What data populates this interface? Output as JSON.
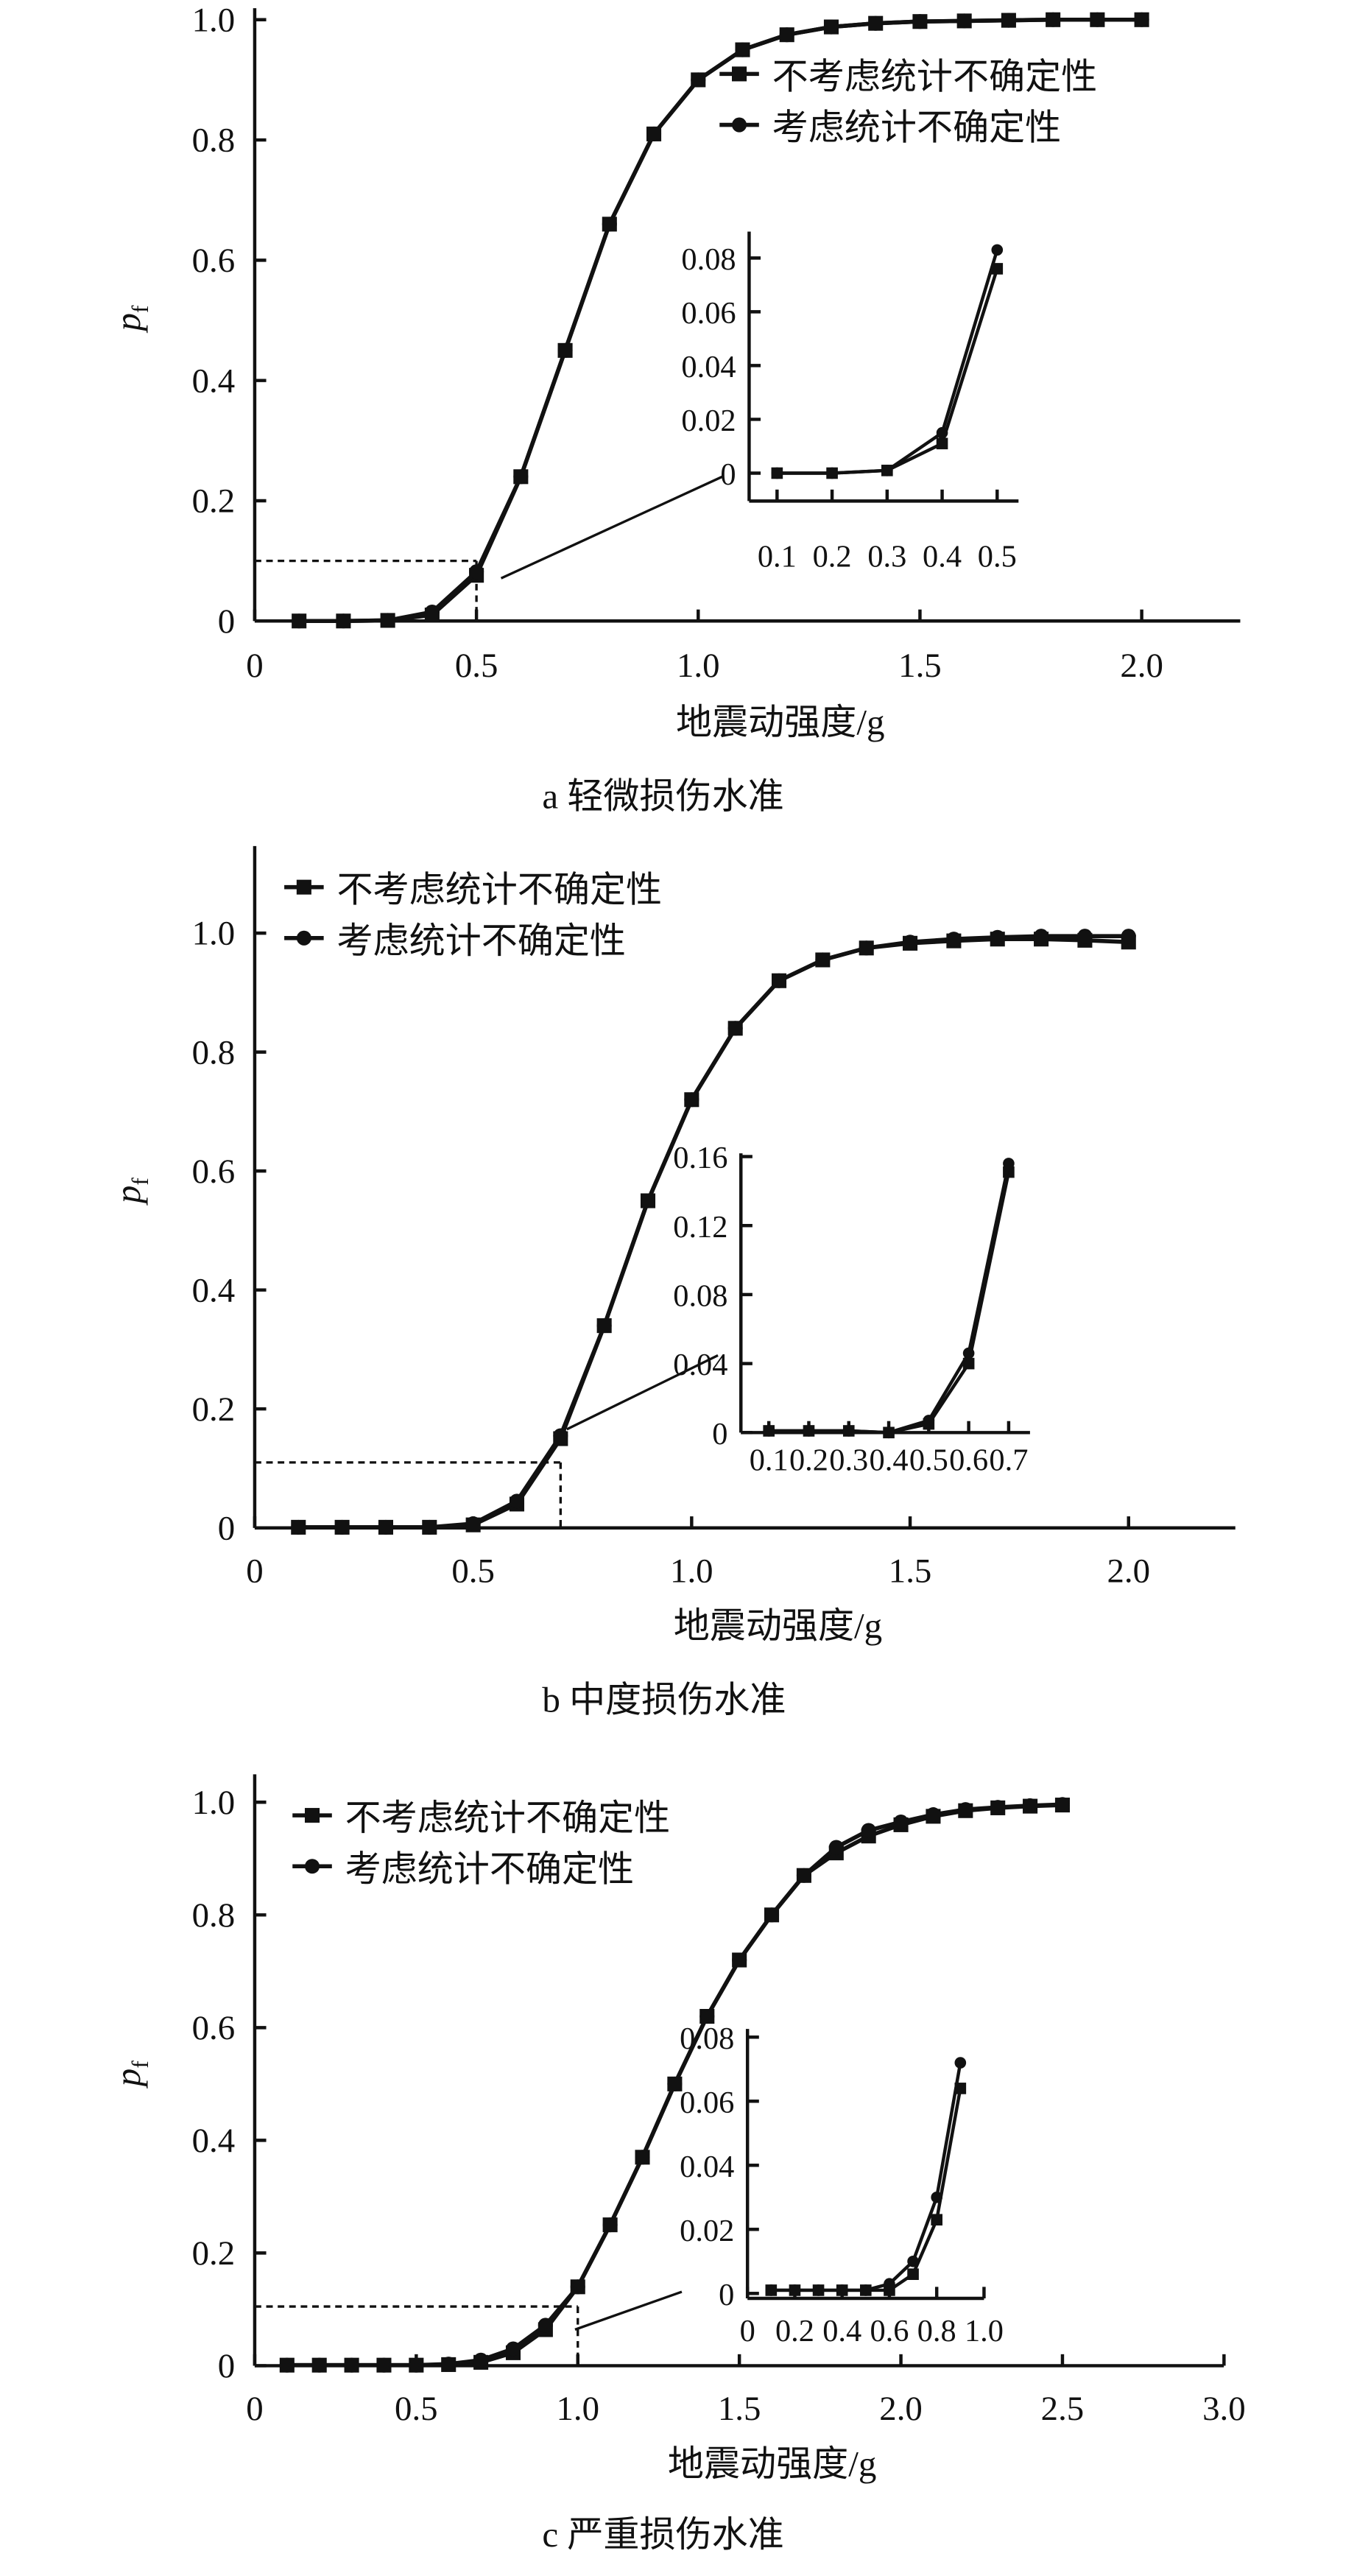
{
  "legend": [
    "不考虑统计不确定性",
    "考虑统计不确定性"
  ],
  "chart_data": [
    {
      "type": "line",
      "caption": "a  轻微损伤水准",
      "xlabel": "地震动强度/g",
      "ylabel": "p_f",
      "xlim": [
        0,
        2.2
      ],
      "ylim": [
        0,
        1.0
      ],
      "xticks": [
        "0",
        "0.5",
        "1.0",
        "1.5",
        "2.0"
      ],
      "xtick_values": [
        0,
        0.5,
        1.0,
        1.5,
        2.0
      ],
      "yticks": [
        "0",
        "0.2",
        "0.4",
        "0.6",
        "0.8",
        "1.0"
      ],
      "ytick_values": [
        0,
        0.2,
        0.4,
        0.6,
        0.8,
        1.0
      ],
      "legend_position": "top-right",
      "reference": {
        "y": 0.1,
        "x": 0.5
      },
      "x": [
        0.1,
        0.2,
        0.3,
        0.4,
        0.5,
        0.6,
        0.7,
        0.8,
        0.9,
        1.0,
        1.1,
        1.2,
        1.3,
        1.4,
        1.5,
        1.6,
        1.7,
        1.8,
        1.9,
        2.0
      ],
      "series": [
        {
          "name": "不考虑统计不确定性",
          "marker": "square",
          "values": [
            0,
            0,
            0.001,
            0.01,
            0.076,
            0.24,
            0.45,
            0.66,
            0.81,
            0.9,
            0.95,
            0.975,
            0.988,
            0.994,
            0.997,
            0.998,
            0.999,
            1.0,
            1.0,
            1.0
          ]
        },
        {
          "name": "考虑统计不确定性",
          "marker": "circle",
          "values": [
            0,
            0,
            0.001,
            0.015,
            0.082,
            0.24,
            0.45,
            0.66,
            0.81,
            0.9,
            0.95,
            0.975,
            0.988,
            0.994,
            0.997,
            0.998,
            0.999,
            1.0,
            1.0,
            1.0
          ]
        }
      ],
      "inset": {
        "xticks": [
          "0.1",
          "0.2",
          "0.3",
          "0.4",
          "0.5"
        ],
        "xtick_values": [
          0.1,
          0.2,
          0.3,
          0.4,
          0.5
        ],
        "yticks": [
          "0",
          "0.02",
          "0.04",
          "0.06",
          "0.08"
        ],
        "ytick_values": [
          0,
          0.02,
          0.04,
          0.06,
          0.08
        ],
        "x": [
          0.1,
          0.2,
          0.3,
          0.4,
          0.5
        ],
        "series": [
          {
            "marker": "square",
            "values": [
              0,
              0,
              0.001,
              0.011,
              0.076
            ]
          },
          {
            "marker": "circle",
            "values": [
              0,
              0,
              0.001,
              0.015,
              0.083
            ]
          }
        ]
      }
    },
    {
      "type": "line",
      "caption": "b  中度损伤水准",
      "xlabel": "地震动强度/g",
      "ylabel": "p_f",
      "xlim": [
        0,
        2.2
      ],
      "ylim": [
        0,
        1.1
      ],
      "xticks": [
        "0",
        "0.5",
        "1.0",
        "1.5",
        "2.0"
      ],
      "xtick_values": [
        0,
        0.5,
        1.0,
        1.5,
        2.0
      ],
      "yticks": [
        "0",
        "0.2",
        "0.4",
        "0.6",
        "0.8",
        "1.0"
      ],
      "ytick_values": [
        0,
        0.2,
        0.4,
        0.6,
        0.8,
        1.0
      ],
      "legend_position": "top-left",
      "reference": {
        "y": 0.11,
        "x": 0.7
      },
      "x": [
        0.1,
        0.2,
        0.3,
        0.4,
        0.5,
        0.6,
        0.7,
        0.8,
        0.9,
        1.0,
        1.1,
        1.2,
        1.3,
        1.4,
        1.5,
        1.6,
        1.7,
        1.8,
        1.9,
        2.0
      ],
      "series": [
        {
          "name": "不考虑统计不确定性",
          "marker": "square",
          "values": [
            0.001,
            0.001,
            0.001,
            0.001,
            0.005,
            0.04,
            0.15,
            0.34,
            0.55,
            0.72,
            0.84,
            0.92,
            0.955,
            0.975,
            0.983,
            0.987,
            0.99,
            0.99,
            0.988,
            0.985
          ]
        },
        {
          "name": "考虑统计不确定性",
          "marker": "circle",
          "values": [
            0.001,
            0.001,
            0.001,
            0.001,
            0.007,
            0.045,
            0.155,
            0.34,
            0.55,
            0.72,
            0.84,
            0.92,
            0.955,
            0.975,
            0.985,
            0.99,
            0.993,
            0.995,
            0.995,
            0.995
          ]
        }
      ],
      "inset": {
        "xticks": [
          "0.1",
          "0.2",
          "0.3",
          "0.4",
          "0.5",
          "0.6",
          "0.7"
        ],
        "xtick_values": [
          0.1,
          0.2,
          0.3,
          0.4,
          0.5,
          0.6,
          0.7
        ],
        "yticks": [
          "0",
          "0.04",
          "0.08",
          "0.12",
          "0.16"
        ],
        "ytick_values": [
          0,
          0.04,
          0.08,
          0.12,
          0.16
        ],
        "x": [
          0.1,
          0.2,
          0.3,
          0.4,
          0.5,
          0.6,
          0.7
        ],
        "series": [
          {
            "marker": "square",
            "values": [
              0.001,
              0.001,
              0.001,
              0,
              0.005,
              0.04,
              0.151
            ]
          },
          {
            "marker": "circle",
            "values": [
              0.001,
              0.001,
              0.001,
              0,
              0.007,
              0.046,
              0.156
            ]
          }
        ]
      }
    },
    {
      "type": "line",
      "caption": "c  严重损伤水准",
      "xlabel": "地震动强度/g",
      "ylabel": "p_f",
      "xlim": [
        0,
        3.0
      ],
      "ylim": [
        0,
        1.05
      ],
      "xticks": [
        "0",
        "0.5",
        "1.0",
        "1.5",
        "2.0",
        "2.5",
        "3.0"
      ],
      "xtick_values": [
        0,
        0.5,
        1.0,
        1.5,
        2.0,
        2.5,
        3.0
      ],
      "yticks": [
        "0",
        "0.2",
        "0.4",
        "0.6",
        "0.8",
        "1.0"
      ],
      "ytick_values": [
        0,
        0.2,
        0.4,
        0.6,
        0.8,
        1.0
      ],
      "legend_position": "top-left",
      "reference": {
        "y": 0.105,
        "x": 1.0
      },
      "x": [
        0.1,
        0.2,
        0.3,
        0.4,
        0.5,
        0.6,
        0.7,
        0.8,
        0.9,
        1.0,
        1.1,
        1.2,
        1.3,
        1.4,
        1.5,
        1.6,
        1.7,
        1.8,
        1.9,
        2.0,
        2.1,
        2.2,
        2.3,
        2.4,
        2.5
      ],
      "series": [
        {
          "name": "不考虑统计不确定性",
          "marker": "square",
          "values": [
            0.001,
            0.001,
            0.001,
            0.001,
            0.001,
            0.002,
            0.006,
            0.023,
            0.064,
            0.14,
            0.25,
            0.37,
            0.5,
            0.62,
            0.72,
            0.8,
            0.87,
            0.91,
            0.94,
            0.96,
            0.975,
            0.985,
            0.99,
            0.993,
            0.995
          ]
        },
        {
          "name": "考虑统计不确定性",
          "marker": "circle",
          "values": [
            0.001,
            0.001,
            0.001,
            0.001,
            0.001,
            0.003,
            0.01,
            0.03,
            0.072,
            0.14,
            0.25,
            0.37,
            0.5,
            0.62,
            0.72,
            0.8,
            0.87,
            0.92,
            0.95,
            0.965,
            0.978,
            0.987,
            0.991,
            0.994,
            0.996
          ]
        }
      ],
      "inset": {
        "xticks": [
          "0",
          "0.2",
          "0.4",
          "0.6",
          "0.8",
          "1.0"
        ],
        "xtick_values": [
          0,
          0.2,
          0.4,
          0.6,
          0.8,
          1.0
        ],
        "yticks": [
          "0",
          "0.02",
          "0.04",
          "0.06",
          "0.08"
        ],
        "ytick_values": [
          0,
          0.02,
          0.04,
          0.06,
          0.08
        ],
        "x": [
          0.1,
          0.2,
          0.3,
          0.4,
          0.5,
          0.6,
          0.7,
          0.8,
          0.9
        ],
        "series": [
          {
            "marker": "square",
            "values": [
              0.001,
              0.001,
              0.001,
              0.001,
              0.001,
              0.001,
              0.006,
              0.023,
              0.064
            ]
          },
          {
            "marker": "circle",
            "values": [
              0.001,
              0.001,
              0.001,
              0.001,
              0.001,
              0.003,
              0.01,
              0.03,
              0.072
            ]
          }
        ]
      }
    }
  ]
}
